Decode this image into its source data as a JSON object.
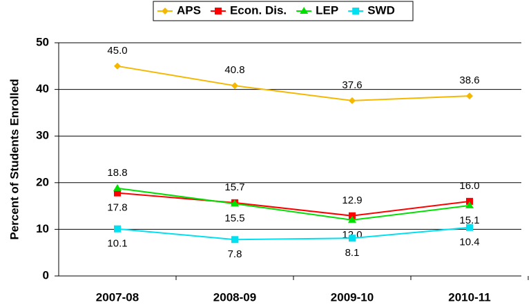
{
  "chart_data": {
    "type": "line",
    "y_label": "Percent of Students Enrolled",
    "categories": [
      "2007-08",
      "2008-09",
      "2009-10",
      "2010-11"
    ],
    "series": [
      {
        "name": "APS",
        "color": "#f5b800",
        "marker": "diamond",
        "values": [
          45.0,
          40.8,
          37.6,
          38.6
        ],
        "value_labels": [
          "45.0",
          "40.8",
          "37.6",
          "38.6"
        ]
      },
      {
        "name": "Econ. Dis.",
        "color": "#ff0000",
        "marker": "square",
        "values": [
          17.8,
          15.7,
          12.9,
          16.0
        ],
        "value_labels": [
          "17.8",
          "15.7",
          "12.9",
          "16.0"
        ]
      },
      {
        "name": "LEP",
        "color": "#00e000",
        "marker": "triangle",
        "values": [
          18.8,
          15.5,
          12.0,
          15.1
        ],
        "value_labels": [
          "18.8",
          "15.5",
          "12.0",
          "15.1"
        ]
      },
      {
        "name": "SWD",
        "color": "#00e0f0",
        "marker": "square",
        "values": [
          10.1,
          7.8,
          8.1,
          10.4
        ],
        "value_labels": [
          "10.1",
          "7.8",
          "8.1",
          "10.4"
        ]
      }
    ],
    "ylim": [
      0,
      50
    ],
    "yticks": [
      0,
      10,
      20,
      30,
      40,
      50
    ],
    "grid": true,
    "legend": "top"
  }
}
